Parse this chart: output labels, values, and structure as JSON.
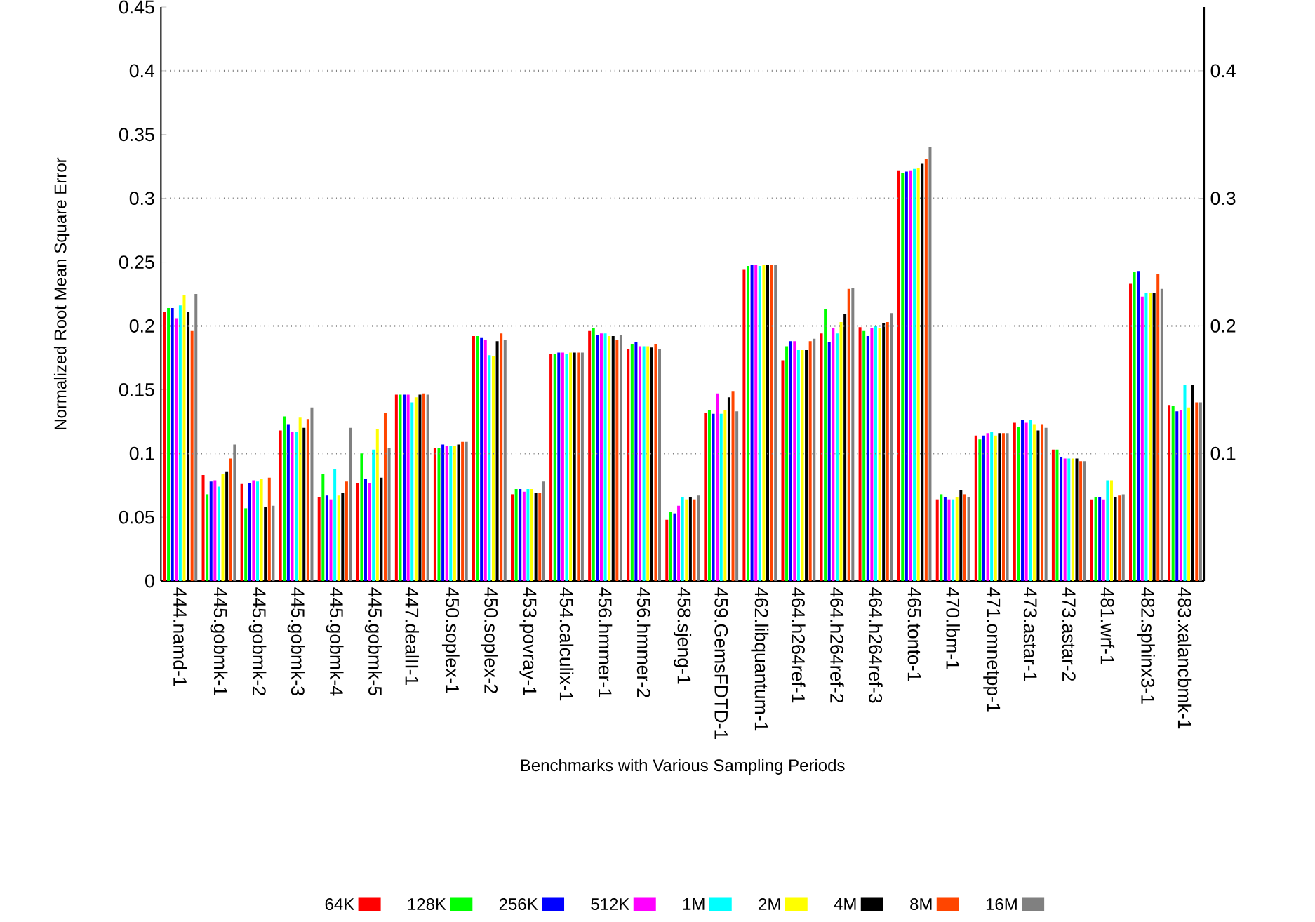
{
  "chart_data": {
    "type": "bar",
    "xlabel": "Benchmarks with Various Sampling Periods",
    "ylabel": "Normalized Root Mean Square Error",
    "categories": [
      "444.namd-1",
      "445.gobmk-1",
      "445.gobmk-2",
      "445.gobmk-3",
      "445.gobmk-4",
      "445.gobmk-5",
      "447.dealII-1",
      "450.soplex-1",
      "450.soplex-2",
      "453.povray-1",
      "454.calculix-1",
      "456.hmmer-1",
      "456.hmmer-2",
      "458.sjeng-1",
      "459.GemsFDTD-1",
      "462.libquantum-1",
      "464.h264ref-1",
      "464.h264ref-2",
      "464.h264ref-3",
      "465.tonto-1",
      "470.lbm-1",
      "471.omnetpp-1",
      "473.astar-1",
      "473.astar-2",
      "481.wrf-1",
      "482.sphinx3-1",
      "483.xalancbmk-1"
    ],
    "series": [
      {
        "name": "64K",
        "color": "#ff0000",
        "values": [
          0.211,
          0.083,
          0.076,
          0.118,
          0.066,
          0.077,
          0.146,
          0.104,
          0.192,
          0.068,
          0.178,
          0.196,
          0.182,
          0.048,
          0.132,
          0.244,
          0.173,
          0.194,
          0.199,
          0.322,
          0.064,
          0.114,
          0.124,
          0.103,
          0.064,
          0.233,
          0.138
        ]
      },
      {
        "name": "128K",
        "color": "#00ff00",
        "values": [
          0.214,
          0.068,
          0.057,
          0.129,
          0.084,
          0.1,
          0.146,
          0.104,
          0.192,
          0.072,
          0.178,
          0.198,
          0.186,
          0.054,
          0.134,
          0.247,
          0.184,
          0.213,
          0.196,
          0.32,
          0.068,
          0.111,
          0.121,
          0.103,
          0.066,
          0.242,
          0.137
        ]
      },
      {
        "name": "256K",
        "color": "#0000ff",
        "values": [
          0.214,
          0.078,
          0.077,
          0.123,
          0.067,
          0.08,
          0.146,
          0.107,
          0.191,
          0.072,
          0.179,
          0.193,
          0.187,
          0.053,
          0.131,
          0.248,
          0.188,
          0.187,
          0.192,
          0.321,
          0.066,
          0.114,
          0.126,
          0.097,
          0.066,
          0.243,
          0.133
        ]
      },
      {
        "name": "512K",
        "color": "#ff00ff",
        "values": [
          0.206,
          0.079,
          0.079,
          0.117,
          0.064,
          0.077,
          0.146,
          0.106,
          0.189,
          0.07,
          0.179,
          0.194,
          0.184,
          0.059,
          0.147,
          0.248,
          0.188,
          0.198,
          0.198,
          0.322,
          0.064,
          0.116,
          0.124,
          0.096,
          0.064,
          0.223,
          0.134
        ]
      },
      {
        "name": "1M",
        "color": "#00ffff",
        "values": [
          0.216,
          0.074,
          0.078,
          0.117,
          0.088,
          0.103,
          0.14,
          0.106,
          0.177,
          0.072,
          0.178,
          0.194,
          0.184,
          0.066,
          0.131,
          0.247,
          0.181,
          0.194,
          0.2,
          0.323,
          0.064,
          0.117,
          0.126,
          0.096,
          0.079,
          0.226,
          0.154
        ]
      },
      {
        "name": "2M",
        "color": "#ffff00",
        "values": [
          0.224,
          0.084,
          0.08,
          0.128,
          0.067,
          0.119,
          0.144,
          0.106,
          0.176,
          0.072,
          0.179,
          0.192,
          0.184,
          0.064,
          0.134,
          0.248,
          0.181,
          0.203,
          0.198,
          0.324,
          0.066,
          0.114,
          0.123,
          0.096,
          0.079,
          0.226,
          0.136
        ]
      },
      {
        "name": "4M",
        "color": "#000000",
        "values": [
          0.211,
          0.086,
          0.058,
          0.12,
          0.069,
          0.081,
          0.146,
          0.107,
          0.188,
          0.069,
          0.179,
          0.192,
          0.183,
          0.066,
          0.144,
          0.248,
          0.181,
          0.209,
          0.202,
          0.327,
          0.071,
          0.116,
          0.118,
          0.096,
          0.066,
          0.226,
          0.154
        ]
      },
      {
        "name": "8M",
        "color": "#ff4500",
        "values": [
          0.196,
          0.096,
          0.081,
          0.127,
          0.078,
          0.132,
          0.147,
          0.109,
          0.194,
          0.069,
          0.179,
          0.189,
          0.186,
          0.064,
          0.149,
          0.248,
          0.188,
          0.229,
          0.203,
          0.331,
          0.068,
          0.116,
          0.123,
          0.094,
          0.067,
          0.241,
          0.14
        ]
      },
      {
        "name": "16M",
        "color": "#808080",
        "values": [
          0.225,
          0.107,
          0.059,
          0.136,
          0.12,
          0.104,
          0.146,
          0.109,
          0.189,
          0.078,
          0.179,
          0.193,
          0.182,
          0.067,
          0.133,
          0.248,
          0.19,
          0.23,
          0.21,
          0.34,
          0.066,
          0.116,
          0.12,
          0.094,
          0.068,
          0.229,
          0.14
        ]
      }
    ],
    "ylim": [
      0,
      0.45
    ],
    "yticks": [
      0,
      0.05,
      0.1,
      0.15,
      0.2,
      0.25,
      0.3,
      0.35,
      0.4,
      0.45
    ],
    "y2lim": [
      0,
      0.45
    ],
    "y2ticks": [
      0.1,
      0.2,
      0.3,
      0.4
    ],
    "grid": "y",
    "legend": "bottom"
  }
}
